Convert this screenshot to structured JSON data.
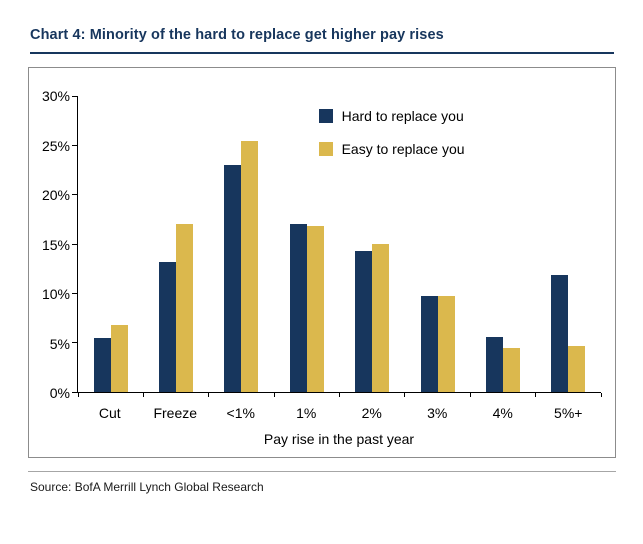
{
  "header": {
    "title": "Chart 4: Minority of the hard to replace get higher pay rises"
  },
  "footer": {
    "source": "Source: BofA Merrill Lynch Global Research"
  },
  "colors": {
    "title_navy": "#17365D",
    "series_navy": "#17365D",
    "series_gold": "#DBB84D",
    "box_border": "#8c8c8c",
    "axis": "#000000"
  },
  "chart_data": {
    "type": "bar",
    "title": "Chart 4: Minority of the hard to replace get higher pay rises",
    "categories": [
      "Cut",
      "Freeze",
      "<1%",
      "1%",
      "2%",
      "3%",
      "4%",
      "5%+"
    ],
    "series": [
      {
        "name": "Hard to replace you",
        "color": "#17365D",
        "values": [
          5.5,
          13.2,
          23.0,
          17.0,
          14.3,
          9.7,
          5.6,
          11.9
        ]
      },
      {
        "name": "Easy to replace you",
        "color": "#DBB84D",
        "values": [
          6.8,
          17.0,
          25.4,
          16.8,
          15.0,
          9.7,
          4.5,
          4.7
        ]
      }
    ],
    "xlabel": "Pay rise in the past year",
    "ylabel": "",
    "ylim": [
      0,
      30
    ],
    "ytick_step": 5,
    "ytick_suffix": "%",
    "grid": false,
    "legend_position": "top-center-inside"
  }
}
